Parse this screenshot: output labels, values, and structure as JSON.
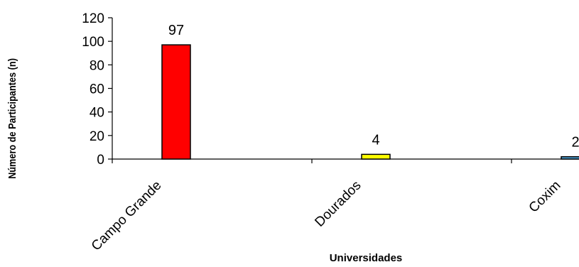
{
  "chart_data": {
    "type": "bar",
    "categories": [
      "Campo Grande",
      "Dourados",
      "Coxim"
    ],
    "values": [
      97,
      4,
      2
    ],
    "bar_colors": [
      "#ff0000",
      "#ffff00",
      "#4da3d8"
    ],
    "data_labels": [
      "97",
      "4",
      "2"
    ],
    "ylim": [
      0,
      120
    ],
    "yticks": [
      "0",
      "20",
      "40",
      "60",
      "80",
      "100",
      "120"
    ],
    "xlabel": "Universidades",
    "ylabel": "Número de Participantes (n)",
    "grid": false,
    "legend": "none"
  }
}
